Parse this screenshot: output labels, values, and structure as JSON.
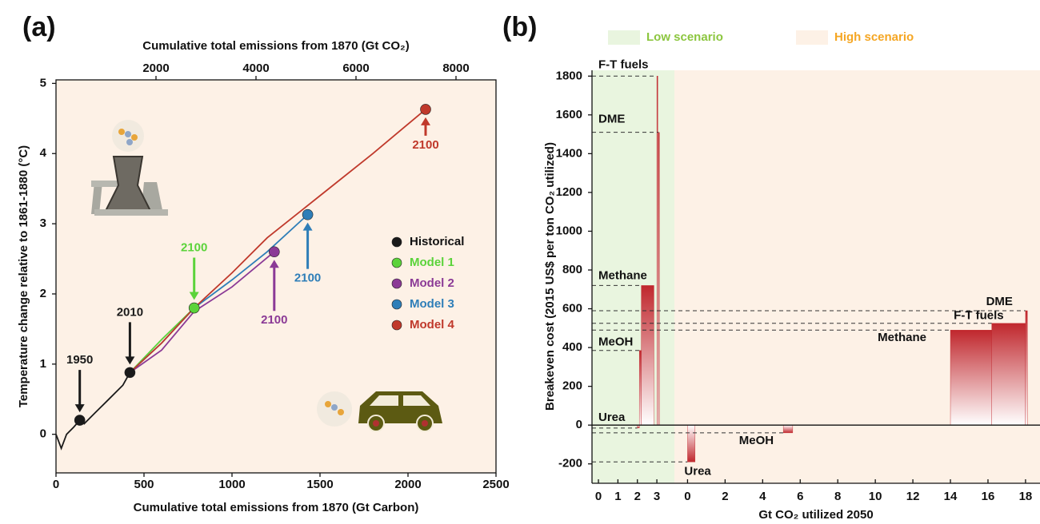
{
  "chart_data": [
    {
      "type": "line",
      "panel_label": "(a)",
      "xlabel": "Cumulative total emissions from 1870 (Gt Carbon)",
      "x2label": "Cumulative total emissions from 1870 (Gt CO₂)",
      "ylabel": "Temperature change relative to 1861-1880 (°C)",
      "xlim": [
        0,
        2500
      ],
      "xticks": [
        0,
        500,
        1000,
        1500,
        2000,
        2500
      ],
      "x2lim": [
        0,
        8800
      ],
      "x2ticks": [
        2000,
        4000,
        6000,
        8000
      ],
      "ylim": [
        -0.55,
        5.05
      ],
      "yticks": [
        0,
        1,
        2,
        3,
        4,
        5
      ],
      "background": "#fdf1e6",
      "series": [
        {
          "name": "Historical",
          "color": "#1a1a1a",
          "x": [
            0,
            30,
            60,
            100,
            135,
            160,
            220,
            300,
            380,
            420
          ],
          "y": [
            0,
            -0.2,
            0,
            0.1,
            0.2,
            0.15,
            0.3,
            0.5,
            0.7,
            0.88
          ]
        },
        {
          "name": "Model 1",
          "color": "#5bd33a",
          "x": [
            420,
            600,
            785
          ],
          "y": [
            0.88,
            1.35,
            1.8
          ]
        },
        {
          "name": "Model 2",
          "color": "#8b3a96",
          "x": [
            420,
            600,
            785,
            1000,
            1240
          ],
          "y": [
            0.88,
            1.2,
            1.75,
            2.1,
            2.6
          ]
        },
        {
          "name": "Model 3",
          "color": "#2e7eb8",
          "x": [
            420,
            600,
            785,
            1000,
            1200,
            1430
          ],
          "y": [
            0.88,
            1.3,
            1.8,
            2.2,
            2.6,
            3.13
          ]
        },
        {
          "name": "Model 4",
          "color": "#c0392b",
          "x": [
            420,
            600,
            785,
            1000,
            1200,
            1500,
            1800,
            2100
          ],
          "y": [
            0.88,
            1.3,
            1.8,
            2.3,
            2.8,
            3.4,
            4.0,
            4.63
          ]
        }
      ],
      "annotations": [
        {
          "text": "1950",
          "x": 135,
          "y": 0.2,
          "color": "#1a1a1a"
        },
        {
          "text": "2010",
          "x": 420,
          "y": 0.88,
          "color": "#1a1a1a"
        },
        {
          "text": "2100",
          "x": 785,
          "y": 1.8,
          "color": "#5bd33a"
        },
        {
          "text": "2100",
          "x": 1240,
          "y": 2.6,
          "color": "#8b3a96"
        },
        {
          "text": "2100",
          "x": 1430,
          "y": 3.13,
          "color": "#2e7eb8"
        },
        {
          "text": "2100",
          "x": 2100,
          "y": 4.63,
          "color": "#c0392b"
        }
      ]
    },
    {
      "type": "bar",
      "panel_label": "(b)",
      "xlabel": "Gt CO₂ utilized 2050",
      "ylabel": "Breakeven cost (2015 US$ per ton CO₂ utilized)",
      "ylim": [
        -300,
        1830
      ],
      "yticks": [
        -200,
        0,
        200,
        400,
        600,
        800,
        1000,
        1200,
        1400,
        1600,
        1800
      ],
      "bar_color": "#c0272d",
      "series": [
        {
          "name": "Low scenario",
          "color": "#e9f5df",
          "text_color": "#8cc63f",
          "xlim": [
            -0.33,
            3.9
          ],
          "xticks": [
            0,
            1,
            2,
            3
          ],
          "categories": [
            "Urea",
            "MeOH",
            "Methane",
            "F-T fuels",
            "DME"
          ],
          "values": [
            -15,
            385,
            720,
            1800,
            1510
          ],
          "x0": [
            2.0,
            2.1,
            2.2,
            3.0,
            3.08
          ],
          "x1": [
            2.1,
            2.2,
            2.85,
            3.05,
            3.12
          ]
        },
        {
          "name": "High scenario",
          "color": "#fdf1e6",
          "text_color": "#f5a623",
          "xlim": [
            -0.7,
            18.6
          ],
          "xticks": [
            0,
            2,
            4,
            6,
            8,
            10,
            12,
            14,
            16,
            18
          ],
          "categories": [
            "Urea",
            "MeOH",
            "Methane",
            "F-T fuels",
            "DME"
          ],
          "values": [
            -190,
            -40,
            490,
            525,
            590
          ],
          "x0": [
            0,
            5.1,
            14,
            16.2,
            18
          ],
          "x1": [
            0.4,
            5.6,
            16.2,
            18,
            18.1
          ]
        }
      ]
    }
  ]
}
